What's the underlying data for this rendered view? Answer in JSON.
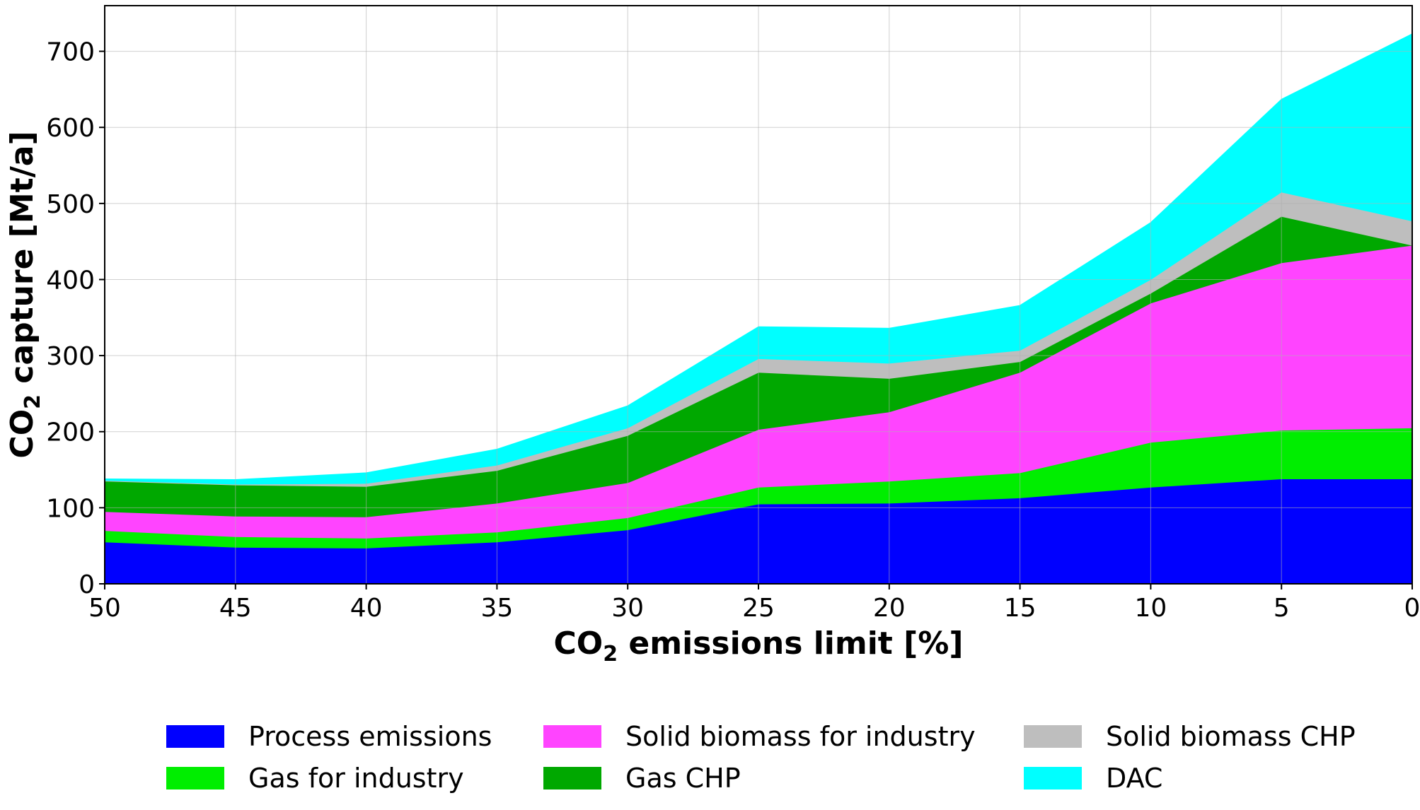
{
  "chart_data": {
    "type": "area",
    "stacked": true,
    "x": [
      50,
      45,
      40,
      35,
      30,
      25,
      20,
      15,
      10,
      5,
      0
    ],
    "x_tick_labels": [
      "50",
      "45",
      "40",
      "35",
      "30",
      "25",
      "20",
      "15",
      "10",
      "5",
      "0"
    ],
    "y_ticks": [
      0,
      100,
      200,
      300,
      400,
      500,
      600,
      700
    ],
    "y_tick_labels": [
      "0",
      "100",
      "200",
      "300",
      "400",
      "500",
      "600",
      "700"
    ],
    "xlim": [
      50,
      0
    ],
    "ylim": [
      0,
      760
    ],
    "grid": true,
    "xlabel": {
      "prefix": "CO",
      "sub": "2",
      "suffix": " emissions limit [%]"
    },
    "ylabel": {
      "prefix": "CO",
      "sub": "2",
      "suffix": " capture [Mt/a]"
    },
    "legend_position": "bottom",
    "series": [
      {
        "name": "Process emissions",
        "color": "#0000ff",
        "values": [
          55,
          48,
          47,
          55,
          71,
          105,
          106,
          113,
          127,
          138,
          138
        ]
      },
      {
        "name": "Gas for industry",
        "color": "#00ee00",
        "values": [
          15,
          14,
          13,
          13,
          16,
          22,
          29,
          33,
          59,
          64,
          67
        ]
      },
      {
        "name": "Solid biomass for industry",
        "color": "#ff44ff",
        "values": [
          25,
          27,
          28,
          38,
          46,
          76,
          91,
          132,
          183,
          220,
          240
        ]
      },
      {
        "name": "Gas CHP",
        "color": "#00a800",
        "values": [
          40,
          41,
          40,
          43,
          62,
          75,
          44,
          14,
          13,
          61,
          0
        ]
      },
      {
        "name": "Solid biomass CHP",
        "color": "#bebebe",
        "values": [
          1,
          1,
          4,
          7,
          10,
          18,
          20,
          15,
          18,
          32,
          32
        ]
      },
      {
        "name": "DAC",
        "color": "#00ffff",
        "values": [
          2,
          6,
          14,
          21,
          29,
          42,
          46,
          59,
          75,
          122,
          246
        ]
      }
    ]
  }
}
